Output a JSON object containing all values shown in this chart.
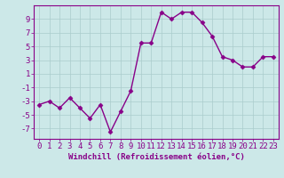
{
  "x": [
    0,
    1,
    2,
    3,
    4,
    5,
    6,
    7,
    8,
    9,
    10,
    11,
    12,
    13,
    14,
    15,
    16,
    17,
    18,
    19,
    20,
    21,
    22,
    23
  ],
  "y": [
    -3.5,
    -3.0,
    -4.0,
    -2.5,
    -4.0,
    -5.5,
    -3.5,
    -7.5,
    -4.5,
    -1.5,
    5.5,
    5.5,
    10.0,
    9.0,
    10.0,
    10.0,
    8.5,
    6.5,
    3.5,
    3.0,
    2.0,
    2.0,
    3.5,
    3.5
  ],
  "line_color": "#880088",
  "marker": "D",
  "marker_size": 2.5,
  "linewidth": 1.0,
  "xlabel": "Windchill (Refroidissement éolien,°C)",
  "ylabel": "",
  "yticks": [
    -7,
    -5,
    -3,
    -1,
    1,
    3,
    5,
    7,
    9
  ],
  "ytick_labels": [
    "-7",
    "-5",
    "-3",
    "-1",
    "1",
    "3",
    "5",
    "7",
    "9"
  ],
  "xticks": [
    0,
    1,
    2,
    3,
    4,
    5,
    6,
    7,
    8,
    9,
    10,
    11,
    12,
    13,
    14,
    15,
    16,
    17,
    18,
    19,
    20,
    21,
    22,
    23
  ],
  "xlim": [
    -0.5,
    23.5
  ],
  "ylim": [
    -8.5,
    11.0
  ],
  "bg_color": "#cce8e8",
  "grid_color": "#aacccc",
  "xlabel_fontsize": 6.5,
  "tick_fontsize": 6.5,
  "font_color": "#880088",
  "spine_color": "#880088"
}
